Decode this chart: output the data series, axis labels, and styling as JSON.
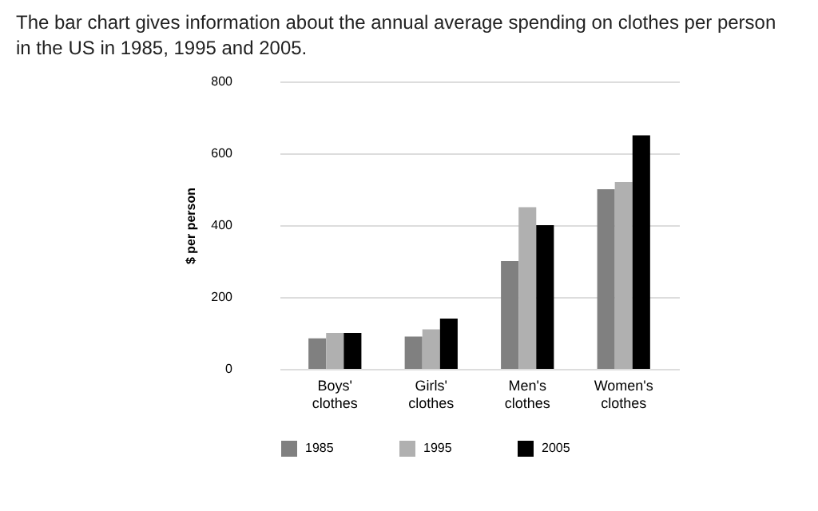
{
  "chart_data": {
    "type": "bar",
    "title": "The bar chart gives information about the annual average spending on clothes per person in the US in 1985, 1995 and 2005.",
    "ylabel": "$ per person",
    "categories": [
      "Boys' clothes",
      "Girls' clothes",
      "Men's clothes",
      "Women's clothes"
    ],
    "series": [
      {
        "name": "1985",
        "color": "#808080",
        "values": [
          85,
          90,
          300,
          500
        ]
      },
      {
        "name": "1995",
        "color": "#b0b0b0",
        "values": [
          100,
          110,
          450,
          520
        ]
      },
      {
        "name": "2005",
        "color": "#000000",
        "values": [
          100,
          140,
          400,
          650
        ]
      }
    ],
    "ylim": [
      0,
      800
    ],
    "yticks": [
      0,
      200,
      400,
      600,
      800
    ],
    "grid": "y",
    "legend": "bottom"
  }
}
